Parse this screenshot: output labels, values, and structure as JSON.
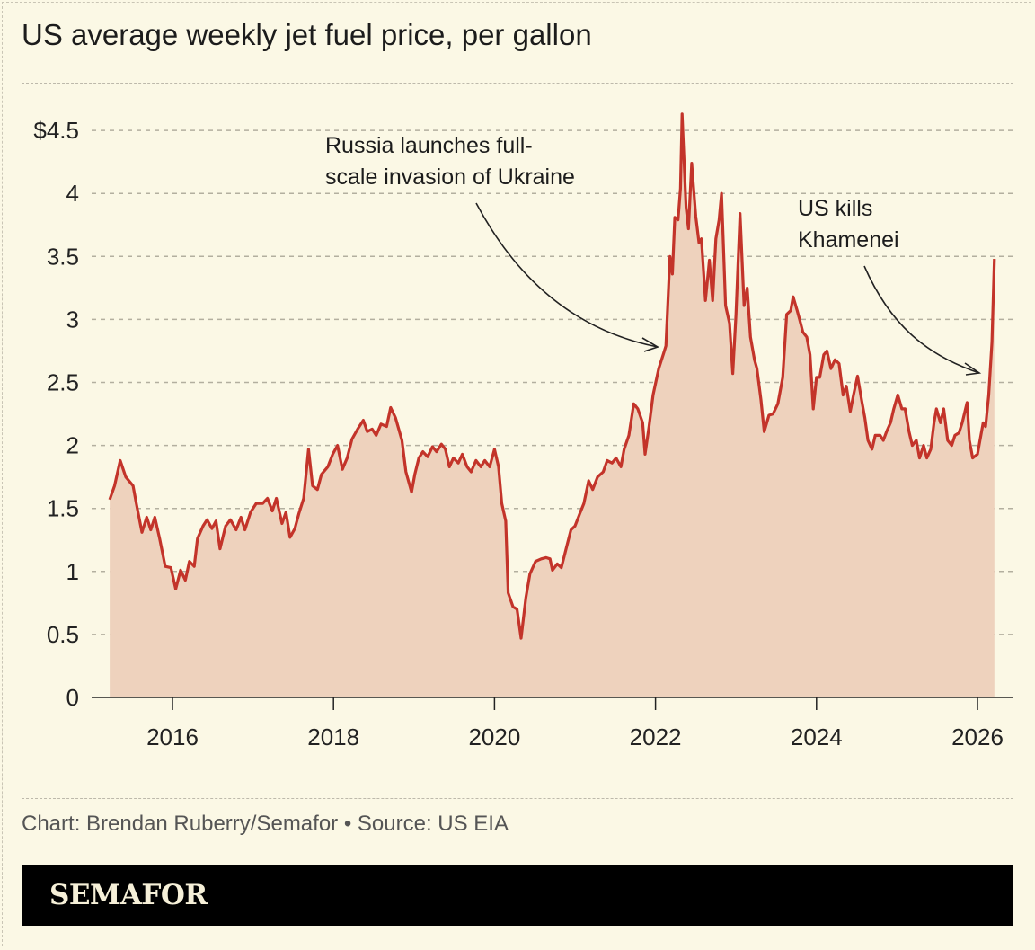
{
  "title": "US average weekly jet fuel price, per gallon",
  "source": "Chart: Brendan Ruberry/Semafor • Source: US EIA",
  "brand": "SEMAFOR",
  "colors": {
    "background": "#fbf8e5",
    "line": "#c3342a",
    "area": "#eed2bd",
    "grid": "#b3af9f"
  },
  "chart_data": {
    "type": "area",
    "title": "US average weekly jet fuel price, per gallon",
    "xlabel": "",
    "ylabel": "",
    "xlim": [
      2015.0,
      2026.25
    ],
    "ylim": [
      0,
      4.7
    ],
    "grid": true,
    "x_ticks": [
      2016,
      2018,
      2020,
      2022,
      2024,
      2026
    ],
    "x_tick_labels": [
      "2016",
      "2018",
      "2020",
      "2022",
      "2024",
      "2026"
    ],
    "y_ticks": [
      0,
      0.5,
      1,
      1.5,
      2,
      2.5,
      3,
      3.5,
      4,
      4.5
    ],
    "y_tick_labels": [
      "0",
      "0.5",
      "1",
      "1.5",
      "2",
      "2.5",
      "3",
      "3.5",
      "4",
      "$4.5"
    ],
    "annotations": [
      {
        "lines": [
          "Russia launches full-",
          "scale invasion of Ukraine"
        ],
        "x": 2022.13,
        "y": 2.79
      },
      {
        "lines": [
          "US kills",
          "Khamenei"
        ],
        "x": 2026.14,
        "y": 2.55
      }
    ],
    "x": [
      2015.22,
      2015.28,
      2015.35,
      2015.42,
      2015.51,
      2015.55,
      2015.62,
      2015.68,
      2015.73,
      2015.78,
      2015.84,
      2015.91,
      2015.98,
      2016.04,
      2016.1,
      2016.16,
      2016.21,
      2016.27,
      2016.31,
      2016.38,
      2016.43,
      2016.49,
      2016.54,
      2016.59,
      2016.66,
      2016.72,
      2016.79,
      2016.85,
      2016.9,
      2016.97,
      2017.04,
      2017.12,
      2017.18,
      2017.24,
      2017.29,
      2017.36,
      2017.41,
      2017.46,
      2017.52,
      2017.57,
      2017.63,
      2017.69,
      2017.74,
      2017.8,
      2017.85,
      2017.93,
      2017.99,
      2018.05,
      2018.11,
      2018.17,
      2018.23,
      2018.3,
      2018.37,
      2018.42,
      2018.48,
      2018.53,
      2018.59,
      2018.66,
      2018.71,
      2018.77,
      2018.85,
      2018.9,
      2018.97,
      2019.01,
      2019.06,
      2019.11,
      2019.17,
      2019.23,
      2019.28,
      2019.34,
      2019.39,
      2019.44,
      2019.49,
      2019.55,
      2019.6,
      2019.66,
      2019.71,
      2019.77,
      2019.83,
      2019.88,
      2019.94,
      2020.0,
      2020.05,
      2020.09,
      2020.14,
      2020.17,
      2020.23,
      2020.28,
      2020.33,
      2020.39,
      2020.44,
      2020.51,
      2020.58,
      2020.64,
      2020.69,
      2020.72,
      2020.78,
      2020.83,
      2020.89,
      2020.95,
      2021.0,
      2021.06,
      2021.11,
      2021.17,
      2021.22,
      2021.28,
      2021.35,
      2021.4,
      2021.46,
      2021.51,
      2021.57,
      2021.61,
      2021.67,
      2021.73,
      2021.78,
      2021.84,
      2021.87,
      2021.92,
      2021.97,
      2022.04,
      2022.1,
      2022.13,
      2022.18,
      2022.21,
      2022.24,
      2022.28,
      2022.31,
      2022.33,
      2022.38,
      2022.41,
      2022.45,
      2022.5,
      2022.54,
      2022.57,
      2022.62,
      2022.67,
      2022.71,
      2022.75,
      2022.79,
      2022.82,
      2022.87,
      2022.92,
      2022.96,
      2023.0,
      2023.05,
      2023.1,
      2023.14,
      2023.18,
      2023.23,
      2023.26,
      2023.31,
      2023.35,
      2023.41,
      2023.46,
      2023.52,
      2023.58,
      2023.63,
      2023.68,
      2023.71,
      2023.76,
      2023.79,
      2023.83,
      2023.88,
      2023.92,
      2023.96,
      2024.0,
      2024.04,
      2024.09,
      2024.13,
      2024.18,
      2024.23,
      2024.28,
      2024.33,
      2024.37,
      2024.42,
      2024.46,
      2024.51,
      2024.56,
      2024.6,
      2024.64,
      2024.69,
      2024.73,
      2024.79,
      2024.83,
      2024.87,
      2024.92,
      2024.96,
      2025.01,
      2025.06,
      2025.1,
      2025.15,
      2025.19,
      2025.24,
      2025.28,
      2025.33,
      2025.37,
      2025.42,
      2025.46,
      2025.49,
      2025.54,
      2025.58,
      2025.63,
      2025.68,
      2025.72,
      2025.77,
      2025.81,
      2025.87,
      2025.9,
      2025.94,
      2026.0,
      2026.07,
      2026.1,
      2026.14,
      2026.18,
      2026.21
    ],
    "values": [
      1.57,
      1.68,
      1.88,
      1.75,
      1.68,
      1.54,
      1.31,
      1.43,
      1.33,
      1.43,
      1.26,
      1.04,
      1.03,
      0.86,
      1.01,
      0.93,
      1.08,
      1.04,
      1.26,
      1.36,
      1.41,
      1.34,
      1.4,
      1.18,
      1.36,
      1.41,
      1.33,
      1.43,
      1.33,
      1.47,
      1.54,
      1.54,
      1.58,
      1.48,
      1.58,
      1.38,
      1.47,
      1.27,
      1.34,
      1.46,
      1.58,
      1.97,
      1.68,
      1.65,
      1.77,
      1.83,
      1.93,
      2.0,
      1.81,
      1.9,
      2.05,
      2.13,
      2.2,
      2.11,
      2.13,
      2.08,
      2.17,
      2.15,
      2.3,
      2.22,
      2.04,
      1.79,
      1.63,
      1.77,
      1.9,
      1.95,
      1.91,
      1.99,
      1.95,
      2.01,
      1.97,
      1.83,
      1.9,
      1.86,
      1.93,
      1.83,
      1.79,
      1.88,
      1.83,
      1.88,
      1.83,
      1.97,
      1.83,
      1.54,
      1.4,
      0.83,
      0.72,
      0.7,
      0.47,
      0.79,
      0.98,
      1.08,
      1.1,
      1.11,
      1.1,
      1.01,
      1.06,
      1.03,
      1.18,
      1.33,
      1.36,
      1.46,
      1.54,
      1.72,
      1.65,
      1.75,
      1.79,
      1.88,
      1.86,
      1.9,
      1.83,
      1.97,
      2.08,
      2.33,
      2.29,
      2.18,
      1.93,
      2.15,
      2.4,
      2.61,
      2.73,
      2.79,
      3.5,
      3.36,
      3.81,
      3.79,
      4.04,
      4.63,
      3.89,
      3.72,
      4.24,
      3.82,
      3.61,
      3.64,
      3.15,
      3.47,
      3.15,
      3.64,
      3.79,
      4.0,
      3.11,
      2.97,
      2.57,
      3.04,
      3.84,
      3.11,
      3.25,
      2.86,
      2.68,
      2.61,
      2.36,
      2.11,
      2.24,
      2.25,
      2.33,
      2.54,
      3.04,
      3.07,
      3.18,
      3.07,
      3.0,
      2.9,
      2.86,
      2.72,
      2.29,
      2.54,
      2.54,
      2.72,
      2.75,
      2.61,
      2.68,
      2.65,
      2.4,
      2.47,
      2.27,
      2.4,
      2.55,
      2.36,
      2.22,
      2.04,
      1.97,
      2.08,
      2.08,
      2.04,
      2.11,
      2.18,
      2.29,
      2.4,
      2.29,
      2.29,
      2.11,
      2.0,
      2.04,
      1.9,
      2.0,
      1.9,
      1.97,
      2.18,
      2.29,
      2.18,
      2.29,
      2.04,
      2.0,
      2.08,
      2.1,
      2.18,
      2.34,
      2.04,
      1.9,
      1.93,
      2.18,
      2.15,
      2.4,
      2.82,
      3.48
    ]
  }
}
